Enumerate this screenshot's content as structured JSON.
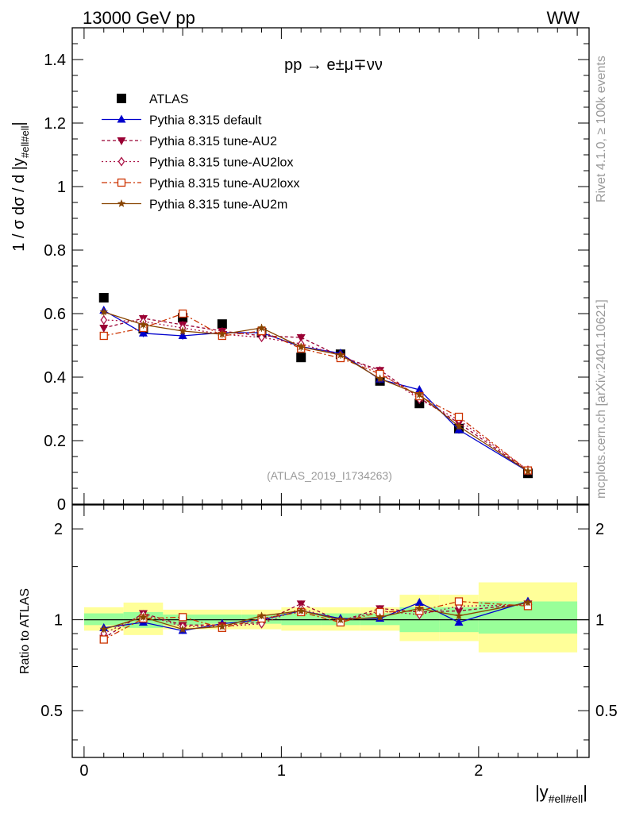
{
  "header": {
    "left": "13000 GeV pp",
    "right": "WW"
  },
  "side": {
    "rivet": "Rivet 4.1.0, ≥ 100k events",
    "mcplots": "mcplots.cern.ch [arXiv:2401.10621]"
  },
  "process_label": "pp → e±μ∓νν",
  "analysis_tag": "(ATLAS_2019_I1734263)",
  "colors": {
    "data": "#000000",
    "default": "#0000cc",
    "AU2": "#990033",
    "AU2lox": "#aa1144",
    "AU2loxx": "#cc3300",
    "AU2m": "#884400",
    "band_inner": "#99ff99",
    "band_outer": "#ffff99"
  },
  "chart_data": [
    {
      "type": "scatter",
      "panel": "main",
      "title": "pp → e±μ∓νν",
      "ylabel": "1 / σ  dσ / d |y#ell#ell|",
      "xlabel": "|y#ell#ell|",
      "xlim": [
        -0.06,
        2.56
      ],
      "ylim": [
        0,
        1.5
      ],
      "x_ticks": [
        "0",
        "1",
        "2"
      ],
      "y_ticks": [
        "0",
        "0.2",
        "0.4",
        "0.6",
        "0.8",
        "1",
        "1.2",
        "1.4"
      ],
      "x": [
        0.1,
        0.3,
        0.5,
        0.7,
        0.9,
        1.1,
        1.3,
        1.5,
        1.7,
        1.9,
        2.25
      ],
      "series": [
        {
          "name": "ATLAS",
          "key": "data",
          "marker": "square",
          "values": [
            0.65,
            0.553,
            0.587,
            0.567,
            0.54,
            0.462,
            0.472,
            0.388,
            0.317,
            0.238,
            0.097
          ]
        },
        {
          "name": "Pythia 8.315 default",
          "key": "default",
          "marker": "triangle-up",
          "dash": "",
          "values": [
            0.61,
            0.538,
            0.53,
            0.54,
            0.54,
            0.496,
            0.475,
            0.393,
            0.36,
            0.234,
            0.103
          ]
        },
        {
          "name": "Pythia 8.315 tune-AU2",
          "key": "AU2",
          "marker": "triangle-down",
          "dash": "4,3",
          "values": [
            0.555,
            0.585,
            0.565,
            0.545,
            0.53,
            0.525,
            0.465,
            0.422,
            0.335,
            0.255,
            0.105
          ]
        },
        {
          "name": "Pythia 8.315 tune-AU2lox",
          "key": "AU2lox",
          "marker": "diamond-open",
          "dash": "2,3",
          "values": [
            0.58,
            0.575,
            0.555,
            0.535,
            0.525,
            0.505,
            0.468,
            0.415,
            0.33,
            0.265,
            0.107
          ]
        },
        {
          "name": "Pythia 8.315 tune-AU2loxx",
          "key": "AU2loxx",
          "marker": "square-open",
          "dash": "7,3,2,3",
          "values": [
            0.53,
            0.555,
            0.6,
            0.53,
            0.545,
            0.49,
            0.46,
            0.41,
            0.34,
            0.275,
            0.106
          ]
        },
        {
          "name": "Pythia 8.315 tune-AU2m",
          "key": "AU2m",
          "marker": "star",
          "dash": "",
          "values": [
            0.605,
            0.565,
            0.545,
            0.535,
            0.555,
            0.495,
            0.47,
            0.395,
            0.345,
            0.245,
            0.104
          ]
        }
      ]
    },
    {
      "type": "scatter",
      "panel": "ratio",
      "ylabel": "Ratio to ATLAS",
      "ylim": [
        0.35,
        2.4
      ],
      "y_ticks": [
        "0.5",
        "1",
        "2"
      ],
      "bins": [
        [
          0.0,
          0.2
        ],
        [
          0.2,
          0.4
        ],
        [
          0.4,
          0.6
        ],
        [
          0.6,
          0.8
        ],
        [
          0.8,
          1.0
        ],
        [
          1.0,
          1.2
        ],
        [
          1.2,
          1.4
        ],
        [
          1.4,
          1.6
        ],
        [
          1.6,
          1.8
        ],
        [
          1.8,
          2.0
        ],
        [
          2.0,
          2.5
        ]
      ],
      "band_inner": [
        [
          0.96,
          1.05
        ],
        [
          0.94,
          1.06
        ],
        [
          0.96,
          1.04
        ],
        [
          0.97,
          1.04
        ],
        [
          0.97,
          1.04
        ],
        [
          0.96,
          1.05
        ],
        [
          0.96,
          1.05
        ],
        [
          0.96,
          1.05
        ],
        [
          0.91,
          1.1
        ],
        [
          0.91,
          1.1
        ],
        [
          0.9,
          1.15
        ]
      ],
      "band_outer": [
        [
          0.92,
          1.1
        ],
        [
          0.89,
          1.14
        ],
        [
          0.93,
          1.08
        ],
        [
          0.93,
          1.08
        ],
        [
          0.93,
          1.08
        ],
        [
          0.92,
          1.1
        ],
        [
          0.92,
          1.1
        ],
        [
          0.92,
          1.1
        ],
        [
          0.85,
          1.21
        ],
        [
          0.85,
          1.21
        ],
        [
          0.78,
          1.33
        ]
      ],
      "series": [
        {
          "name": "Pythia 8.315 default",
          "key": "default",
          "marker": "triangle-up",
          "dash": "",
          "values": [
            0.94,
            0.98,
            0.92,
            0.97,
            1.0,
            1.07,
            1.01,
            1.01,
            1.14,
            0.98,
            1.15
          ]
        },
        {
          "name": "Pythia 8.315 tune-AU2",
          "key": "AU2",
          "marker": "triangle-down",
          "dash": "4,3",
          "values": [
            0.87,
            1.05,
            0.96,
            0.96,
            0.98,
            1.13,
            0.99,
            1.09,
            1.06,
            1.07,
            1.13
          ]
        },
        {
          "name": "Pythia 8.315 tune-AU2lox",
          "key": "AU2lox",
          "marker": "diamond-open",
          "dash": "2,3",
          "values": [
            0.9,
            1.04,
            0.95,
            0.95,
            0.97,
            1.09,
            0.99,
            1.07,
            1.04,
            1.11,
            1.12
          ]
        },
        {
          "name": "Pythia 8.315 tune-AU2loxx",
          "key": "AU2loxx",
          "marker": "square-open",
          "dash": "7,3,2,3",
          "values": [
            0.86,
            1.01,
            1.02,
            0.94,
            1.01,
            1.06,
            0.98,
            1.06,
            1.07,
            1.15,
            1.11
          ]
        },
        {
          "name": "Pythia 8.315 tune-AU2m",
          "key": "AU2m",
          "marker": "star",
          "dash": "",
          "values": [
            0.93,
            1.02,
            0.93,
            0.95,
            1.03,
            1.07,
            1.0,
            1.02,
            1.09,
            1.03,
            1.14
          ]
        }
      ]
    }
  ]
}
